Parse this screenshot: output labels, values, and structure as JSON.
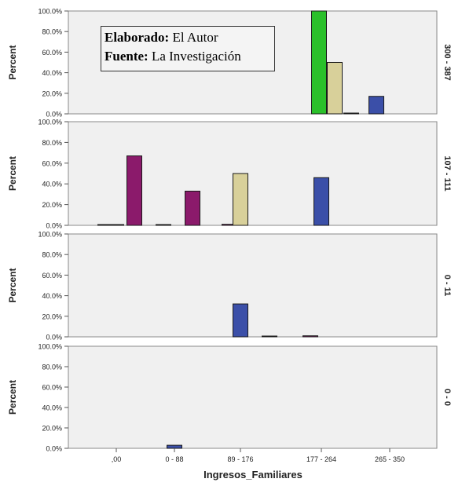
{
  "chart_data": {
    "type": "bar",
    "xlabel": "Ingresos_Familiares",
    "ylabel": "Percent",
    "categories": [
      ",00",
      "0 - 88",
      "89 - 176",
      "177 - 264",
      "265 - 350"
    ],
    "y_ticks": [
      "0.0%",
      "20.0%",
      "40.0%",
      "60.0%",
      "80.0%",
      "100.0%"
    ],
    "ylim": [
      0,
      100
    ],
    "series_colors": [
      "#8b1a6b",
      "#2ac02a",
      "#d8d09a",
      "#3b4fa8"
    ],
    "panel_labels": [
      "300 - 387",
      "107 - 111",
      "0 - 11",
      "0 - 0"
    ],
    "panels": [
      {
        "bars": [
          {
            "category": 3,
            "series": 1,
            "value": 100
          },
          {
            "category": 3,
            "series": 2,
            "value": 50
          },
          {
            "category": 3,
            "series": 3,
            "value": 0
          },
          {
            "category": 4,
            "series": 3,
            "value": 17
          }
        ]
      },
      {
        "bars": [
          {
            "category": 0,
            "series": 0,
            "value": 0
          },
          {
            "category": 0,
            "series": 3,
            "value": 0
          },
          {
            "category": 0,
            "series": 0,
            "value": 67
          },
          {
            "category": 1,
            "series": 0,
            "value": 0
          },
          {
            "category": 1,
            "series": 0,
            "value": 33
          },
          {
            "category": 2,
            "series": 0,
            "value": 1
          },
          {
            "category": 2,
            "series": 2,
            "value": 50
          },
          {
            "category": 3,
            "series": 3,
            "value": 46
          }
        ]
      },
      {
        "bars": [
          {
            "category": 2,
            "series": 3,
            "value": 32
          },
          {
            "category": 2,
            "series": 3,
            "value": 0
          },
          {
            "category": 3,
            "series": 0,
            "value": 1
          }
        ]
      },
      {
        "bars": [
          {
            "category": 1,
            "series": 3,
            "value": 3
          }
        ]
      }
    ]
  },
  "note": {
    "label1": "Elaborado:",
    "value1": "El Autor",
    "label2": "Fuente:",
    "value2": "La Investigación"
  }
}
